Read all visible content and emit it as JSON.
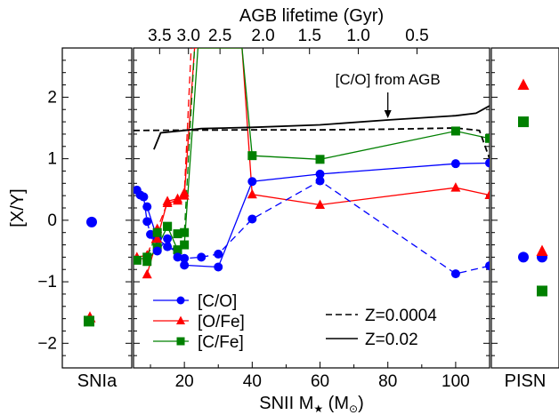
{
  "chart_data": {
    "type": "line",
    "ylabel": "[X/Y]",
    "ylim": [
      -2.4,
      2.8
    ],
    "yticks": [
      -2,
      -1,
      0,
      1,
      2
    ],
    "main": {
      "xlabel_main": "SNII M",
      "xlabel_sub": "★",
      "xlabel_unit_open": " (M",
      "xlabel_unit_sub": "⊙",
      "xlabel_unit_close": ")",
      "xlim": [
        5,
        110
      ],
      "xticks": [
        20,
        40,
        60,
        80,
        100
      ],
      "top_axis_label": "AGB lifetime (Gyr)",
      "top_ticks": [
        {
          "label": "3.5",
          "mass": 12.7
        },
        {
          "label": "3.0",
          "mass": 21.2
        },
        {
          "label": "2.5",
          "mass": 30.5
        },
        {
          "label": "2.0",
          "mass": 43.2
        },
        {
          "label": "1.5",
          "mass": 56.9
        },
        {
          "label": "1.0",
          "mass": 71.3
        },
        {
          "label": "0.5",
          "mass": 88.6
        }
      ],
      "series": [
        {
          "name": "[C/O]",
          "color": "#0000ff",
          "marker": "circle",
          "dash": false,
          "points": [
            [
              9,
              0.22
            ],
            [
              12,
              -0.3
            ],
            [
              15,
              -0.43
            ],
            [
              18,
              -0.52
            ],
            [
              20,
              -0.73
            ],
            [
              30,
              -0.76
            ],
            [
              40,
              0.63
            ],
            [
              60,
              0.75
            ],
            [
              100,
              0.92
            ],
            [
              110,
              0.93
            ]
          ]
        },
        {
          "name": "[O/Fe]",
          "color": "#ff0000",
          "marker": "triangle",
          "dash": false,
          "points": [
            [
              9,
              -0.88
            ],
            [
              12,
              -0.3
            ],
            [
              15,
              0.31
            ],
            [
              18,
              0.35
            ],
            [
              20,
              0.4
            ],
            [
              23,
              2.8
            ],
            [
              37,
              2.8
            ],
            [
              40,
              0.42
            ],
            [
              60,
              0.25
            ],
            [
              100,
              0.53
            ],
            [
              110,
              0.41
            ]
          ]
        },
        {
          "name": "[C/Fe]",
          "color": "#008000",
          "marker": "square",
          "dash": false,
          "points": [
            [
              9,
              -0.67
            ],
            [
              12,
              -0.44
            ],
            [
              15,
              -0.1
            ],
            [
              18,
              -0.48
            ],
            [
              20,
              -0.4
            ],
            [
              24,
              2.8
            ],
            [
              37,
              2.8
            ],
            [
              40,
              1.05
            ],
            [
              60,
              0.99
            ],
            [
              100,
              1.45
            ],
            [
              110,
              1.33
            ]
          ]
        },
        {
          "name": "",
          "color": "#0000ff",
          "marker": "circle",
          "dash": true,
          "points": [
            [
              6,
              0.49
            ],
            [
              7,
              0.41
            ],
            [
              8,
              0.38
            ],
            [
              9,
              -0.02
            ],
            [
              10,
              -0.23
            ],
            [
              12,
              -0.5
            ],
            [
              15,
              -0.3
            ],
            [
              18,
              -0.6
            ],
            [
              20,
              -0.62
            ],
            [
              25,
              -0.6
            ],
            [
              30,
              -0.55
            ],
            [
              40,
              0.02
            ],
            [
              60,
              0.64
            ],
            [
              100,
              -0.87
            ],
            [
              110,
              -0.74
            ]
          ]
        },
        {
          "name": "",
          "color": "#ff0000",
          "marker": "triangle",
          "dash": true,
          "points": [
            [
              6,
              -0.6
            ],
            [
              9,
              -0.57
            ],
            [
              12,
              -0.14
            ],
            [
              15,
              0.28
            ],
            [
              18,
              0.32
            ],
            [
              20,
              0.45
            ],
            [
              22,
              2.8
            ]
          ]
        },
        {
          "name": "",
          "color": "#008000",
          "marker": "square",
          "dash": true,
          "points": [
            [
              6,
              -0.65
            ],
            [
              9,
              -0.6
            ],
            [
              12,
              -0.2
            ],
            [
              15,
              -0.1
            ],
            [
              18,
              -0.22
            ],
            [
              20,
              -0.2
            ],
            [
              23,
              2.8
            ]
          ]
        },
        {
          "name": "",
          "color": "#000000",
          "marker": "none",
          "dash": false,
          "points": [
            [
              11,
              1.15
            ],
            [
              13,
              1.42
            ],
            [
              20,
              1.46
            ],
            [
              25,
              1.49
            ],
            [
              40,
              1.51
            ],
            [
              60,
              1.55
            ],
            [
              80,
              1.63
            ],
            [
              100,
              1.7
            ],
            [
              106,
              1.74
            ],
            [
              110,
              1.86
            ]
          ]
        },
        {
          "name": "",
          "color": "#000000",
          "marker": "none",
          "dash": true,
          "points": [
            [
              5,
              1.46
            ],
            [
              40,
              1.47
            ],
            [
              60,
              1.47
            ],
            [
              80,
              1.48
            ],
            [
              100,
              1.5
            ],
            [
              107,
              1.46
            ],
            [
              110,
              1.0
            ]
          ]
        }
      ]
    },
    "left_panel": {
      "label": "SNIa",
      "points": [
        {
          "marker": "circle",
          "color": "#0000ff",
          "y": -0.03
        },
        {
          "marker": "triangle",
          "color": "#ff0000",
          "y": -1.58
        },
        {
          "marker": "square",
          "color": "#008000",
          "y": -1.64
        }
      ]
    },
    "right_panel": {
      "label": "PISN",
      "points": [
        {
          "marker": "triangle",
          "color": "#ff0000",
          "y": 2.2,
          "slot": 0
        },
        {
          "marker": "square",
          "color": "#008000",
          "y": 1.6,
          "slot": 0
        },
        {
          "marker": "circle",
          "color": "#0000ff",
          "y": -0.6,
          "slot": 0
        },
        {
          "marker": "circle",
          "color": "#0000ff",
          "y": -0.6,
          "slot": 1
        },
        {
          "marker": "triangle",
          "color": "#ff0000",
          "y": -0.5,
          "slot": 1
        },
        {
          "marker": "square",
          "color": "#008000",
          "y": -1.15,
          "slot": 1
        }
      ]
    },
    "legend": {
      "placement": "bottom-left",
      "entries": [
        {
          "label": "[C/O]",
          "color": "#0000ff",
          "marker": "circle"
        },
        {
          "label": "[O/Fe]",
          "color": "#ff0000",
          "marker": "triangle"
        },
        {
          "label": "[C/Fe]",
          "color": "#008000",
          "marker": "square"
        }
      ]
    },
    "legend2": {
      "placement": "bottom-right",
      "entries": [
        {
          "label": "Z=0.0004",
          "dash": true
        },
        {
          "label": "Z=0.02",
          "dash": false
        }
      ]
    },
    "annotation": {
      "text": "[C/O] from AGB",
      "arrow_x": 80,
      "arrow_y": 1.63
    }
  }
}
